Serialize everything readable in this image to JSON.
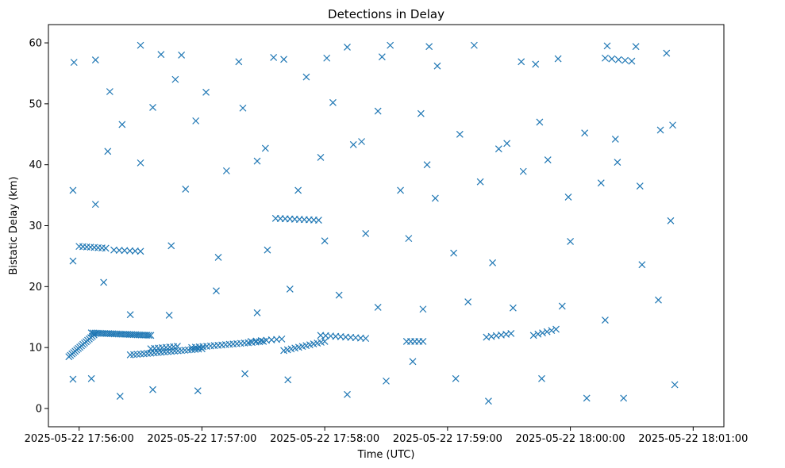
{
  "chart_data": {
    "type": "scatter",
    "title": "Detections in Delay",
    "xlabel": "Time (UTC)",
    "ylabel": "Bistatic Delay (km)",
    "marker": "x",
    "color": "#1f77b4",
    "x_unit": "seconds since 2025-05-22 17:56:00",
    "xlim": [
      -15,
      315
    ],
    "ylim": [
      -3,
      63
    ],
    "xticks": [
      {
        "value": 0,
        "label": "2025-05-22 17:56:00"
      },
      {
        "value": 60,
        "label": "2025-05-22 17:57:00"
      },
      {
        "value": 120,
        "label": "2025-05-22 17:58:00"
      },
      {
        "value": 180,
        "label": "2025-05-22 17:59:00"
      },
      {
        "value": 240,
        "label": "2025-05-22 18:00:00"
      },
      {
        "value": 300,
        "label": "2025-05-22 18:01:00"
      }
    ],
    "yticks": [
      {
        "value": 0,
        "label": "0"
      },
      {
        "value": 10,
        "label": "10"
      },
      {
        "value": 20,
        "label": "20"
      },
      {
        "value": 30,
        "label": "30"
      },
      {
        "value": 40,
        "label": "40"
      },
      {
        "value": 50,
        "label": "50"
      },
      {
        "value": 60,
        "label": "60"
      }
    ],
    "tracks": [
      {
        "x_start": -5,
        "x_end": 8,
        "y_start": 8.5,
        "y_end": 12.3,
        "count": 18
      },
      {
        "x_start": 6,
        "x_end": 35,
        "y_start": 12.4,
        "y_end": 12.0,
        "count": 32
      },
      {
        "x_start": 25,
        "x_end": 60,
        "y_start": 8.8,
        "y_end": 9.8,
        "count": 22
      },
      {
        "x_start": 55,
        "x_end": 90,
        "y_start": 10.0,
        "y_end": 11.0,
        "count": 20
      },
      {
        "x_start": 100,
        "x_end": 120,
        "y_start": 9.5,
        "y_end": 11.0,
        "count": 12
      },
      {
        "x_start": 118,
        "x_end": 140,
        "y_start": 12.0,
        "y_end": 11.5,
        "count": 10
      },
      {
        "x_start": 0,
        "x_end": 13,
        "y_start": 26.6,
        "y_end": 26.3,
        "count": 8
      },
      {
        "x_start": 17,
        "x_end": 30,
        "y_start": 26.0,
        "y_end": 25.8,
        "count": 6
      },
      {
        "x_start": 84,
        "x_end": 99,
        "y_start": 11.0,
        "y_end": 11.4,
        "count": 7
      },
      {
        "x_start": 96,
        "x_end": 117,
        "y_start": 31.2,
        "y_end": 30.9,
        "count": 10
      },
      {
        "x_start": 199,
        "x_end": 211,
        "y_start": 11.7,
        "y_end": 12.3,
        "count": 6
      },
      {
        "x_start": 222,
        "x_end": 233,
        "y_start": 12.0,
        "y_end": 13.0,
        "count": 6
      },
      {
        "x_start": 257,
        "x_end": 270,
        "y_start": 57.5,
        "y_end": 57.0,
        "count": 5
      },
      {
        "x_start": 35,
        "x_end": 48,
        "y_start": 9.8,
        "y_end": 10.2,
        "count": 8
      },
      {
        "x_start": 160,
        "x_end": 168,
        "y_start": 11.0,
        "y_end": 11.0,
        "count": 5
      }
    ],
    "scatter_points": [
      [
        -2.5,
        56.8
      ],
      [
        8,
        57.2
      ],
      [
        40,
        58.1
      ],
      [
        50,
        58.0
      ],
      [
        78,
        56.9
      ],
      [
        95,
        57.6
      ],
      [
        100,
        57.3
      ],
      [
        131,
        59.3
      ],
      [
        152,
        59.6
      ],
      [
        171,
        59.4
      ],
      [
        193,
        59.6
      ],
      [
        223,
        56.5
      ],
      [
        234,
        57.4
      ],
      [
        258,
        59.5
      ],
      [
        287,
        58.3
      ],
      [
        -3,
        35.8
      ],
      [
        -3,
        24.2
      ],
      [
        -3,
        4.8
      ],
      [
        30,
        59.6
      ],
      [
        121,
        57.5
      ],
      [
        148,
        57.7
      ],
      [
        216,
        56.9
      ],
      [
        272,
        59.4
      ],
      [
        175,
        56.2
      ],
      [
        15,
        52.0
      ],
      [
        21,
        46.6
      ],
      [
        36,
        49.4
      ],
      [
        47,
        54.0
      ],
      [
        62,
        51.9
      ],
      [
        80,
        49.3
      ],
      [
        111,
        54.4
      ],
      [
        124,
        50.2
      ],
      [
        146,
        48.8
      ],
      [
        167,
        48.4
      ],
      [
        186,
        45.0
      ],
      [
        209,
        43.5
      ],
      [
        225,
        47.0
      ],
      [
        247,
        45.2
      ],
      [
        262,
        44.2
      ],
      [
        290,
        46.5
      ],
      [
        8,
        33.5
      ],
      [
        30,
        40.3
      ],
      [
        52,
        36.0
      ],
      [
        72,
        39.0
      ],
      [
        91,
        42.7
      ],
      [
        107,
        35.8
      ],
      [
        134,
        43.3
      ],
      [
        157,
        35.8
      ],
      [
        174,
        34.5
      ],
      [
        196,
        37.2
      ],
      [
        217,
        38.9
      ],
      [
        239,
        34.7
      ],
      [
        255,
        37.0
      ],
      [
        274,
        36.5
      ],
      [
        289,
        30.8
      ],
      [
        12,
        20.7
      ],
      [
        25,
        15.4
      ],
      [
        44,
        15.3
      ],
      [
        67,
        19.3
      ],
      [
        87,
        15.7
      ],
      [
        103,
        19.6
      ],
      [
        127,
        18.6
      ],
      [
        146,
        16.6
      ],
      [
        168,
        16.3
      ],
      [
        190,
        17.5
      ],
      [
        212,
        16.5
      ],
      [
        236,
        16.8
      ],
      [
        257,
        14.5
      ],
      [
        283,
        17.8
      ],
      [
        6,
        4.9
      ],
      [
        20,
        2.0
      ],
      [
        36,
        3.1
      ],
      [
        58,
        2.9
      ],
      [
        81,
        5.7
      ],
      [
        102,
        4.7
      ],
      [
        131,
        2.3
      ],
      [
        150,
        4.5
      ],
      [
        163,
        7.7
      ],
      [
        184,
        4.9
      ],
      [
        200,
        1.2
      ],
      [
        226,
        4.9
      ],
      [
        248,
        1.7
      ],
      [
        266,
        1.7
      ],
      [
        291,
        3.9
      ],
      [
        45,
        26.7
      ],
      [
        68,
        24.8
      ],
      [
        92,
        26.0
      ],
      [
        120,
        27.5
      ],
      [
        140,
        28.7
      ],
      [
        161,
        27.9
      ],
      [
        183,
        25.5
      ],
      [
        202,
        23.9
      ],
      [
        240,
        27.4
      ],
      [
        275,
        23.6
      ],
      [
        14,
        42.2
      ],
      [
        57,
        47.2
      ],
      [
        87,
        40.6
      ],
      [
        118,
        41.2
      ],
      [
        138,
        43.8
      ],
      [
        170,
        40.0
      ],
      [
        205,
        42.6
      ],
      [
        229,
        40.8
      ],
      [
        263,
        40.4
      ],
      [
        284,
        45.7
      ]
    ]
  }
}
